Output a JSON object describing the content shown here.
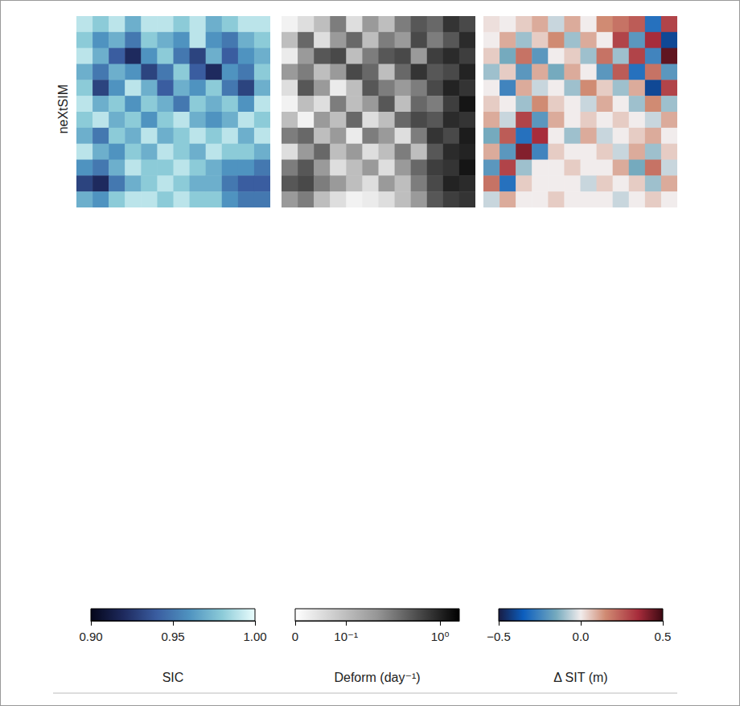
{
  "row_label": "neXtSIM",
  "chart_data": [
    {
      "type": "heatmap",
      "tick_labels": false,
      "color": "ice",
      "cells": [
        [
          0.99,
          0.98,
          0.99,
          0.97,
          0.99,
          0.99,
          0.98,
          0.99,
          0.97,
          0.98,
          0.99,
          0.99
        ],
        [
          0.98,
          0.96,
          0.97,
          0.95,
          0.98,
          0.97,
          0.96,
          0.99,
          0.96,
          0.95,
          0.97,
          0.98
        ],
        [
          0.99,
          0.97,
          0.94,
          0.92,
          0.96,
          0.98,
          0.95,
          0.93,
          0.97,
          0.94,
          0.96,
          0.97
        ],
        [
          0.97,
          0.95,
          0.97,
          0.96,
          0.93,
          0.95,
          0.98,
          0.94,
          0.92,
          0.96,
          0.95,
          0.98
        ],
        [
          0.98,
          0.93,
          0.96,
          0.99,
          0.97,
          0.94,
          0.97,
          0.96,
          0.98,
          0.95,
          0.93,
          0.97
        ],
        [
          0.99,
          0.97,
          0.98,
          0.96,
          0.98,
          0.97,
          0.95,
          0.98,
          0.97,
          0.98,
          0.96,
          0.99
        ],
        [
          0.98,
          0.99,
          0.97,
          0.98,
          0.96,
          0.98,
          0.99,
          0.97,
          0.96,
          0.97,
          0.99,
          0.98
        ],
        [
          0.97,
          0.95,
          0.98,
          0.97,
          0.99,
          0.97,
          0.98,
          0.99,
          0.98,
          0.99,
          0.97,
          0.99
        ],
        [
          0.99,
          0.97,
          0.96,
          0.98,
          0.97,
          0.99,
          0.98,
          0.97,
          0.99,
          0.98,
          0.98,
          0.97
        ],
        [
          0.96,
          0.95,
          0.97,
          0.99,
          0.98,
          0.98,
          0.99,
          0.98,
          0.97,
          0.96,
          0.96,
          0.95
        ],
        [
          0.93,
          0.92,
          0.95,
          0.97,
          0.98,
          0.99,
          0.98,
          0.97,
          0.97,
          0.95,
          0.94,
          0.94
        ],
        [
          0.97,
          0.96,
          0.98,
          0.99,
          0.99,
          0.98,
          0.99,
          0.98,
          0.98,
          0.96,
          0.95,
          0.95
        ]
      ],
      "colorbar": {
        "label": "SIC",
        "range": [
          0.9,
          1.0
        ],
        "ticks": [
          {
            "value": 0.9,
            "label": "0.90"
          },
          0.95,
          {
            "value": 1.0,
            "label": "1.00"
          }
        ]
      }
    },
    {
      "type": "heatmap",
      "tick_labels": false,
      "color": "greys",
      "log": true,
      "cells": [
        [
          0.02,
          0.05,
          0.1,
          0.3,
          0.05,
          0.2,
          0.1,
          0.3,
          0.5,
          0.4,
          0.8,
          0.6
        ],
        [
          0.1,
          0.4,
          0.05,
          0.2,
          0.4,
          0.1,
          0.3,
          0.2,
          0.6,
          0.3,
          0.5,
          0.9
        ],
        [
          0.03,
          0.2,
          0.5,
          0.6,
          0.1,
          0.3,
          0.5,
          0.6,
          0.2,
          0.7,
          0.9,
          0.7
        ],
        [
          0.2,
          0.3,
          0.1,
          0.2,
          0.6,
          0.4,
          0.1,
          0.4,
          0.8,
          0.5,
          0.6,
          1.0
        ],
        [
          0.05,
          0.5,
          0.2,
          0.03,
          0.1,
          0.5,
          0.3,
          0.2,
          0.3,
          0.6,
          1.0,
          0.8
        ],
        [
          0.02,
          0.1,
          0.05,
          0.3,
          0.1,
          0.2,
          0.5,
          0.1,
          0.4,
          0.3,
          0.7,
          1.2
        ],
        [
          0.1,
          0.02,
          0.2,
          0.1,
          0.4,
          0.05,
          0.1,
          0.4,
          0.6,
          0.5,
          0.9,
          0.8
        ],
        [
          0.3,
          0.4,
          0.1,
          0.2,
          0.03,
          0.3,
          0.2,
          0.05,
          0.3,
          0.8,
          0.6,
          1.1
        ],
        [
          0.05,
          0.2,
          0.4,
          0.1,
          0.2,
          0.05,
          0.1,
          0.3,
          0.1,
          0.5,
          0.9,
          1.0
        ],
        [
          0.3,
          0.5,
          0.2,
          0.05,
          0.1,
          0.2,
          0.05,
          0.2,
          0.4,
          0.7,
          0.8,
          1.2
        ],
        [
          0.5,
          0.6,
          0.3,
          0.2,
          0.1,
          0.05,
          0.2,
          0.1,
          0.3,
          0.6,
          1.0,
          0.9
        ],
        [
          0.2,
          0.3,
          0.1,
          0.05,
          0.02,
          0.03,
          0.05,
          0.1,
          0.2,
          0.5,
          0.7,
          0.8
        ]
      ],
      "colorbar": {
        "label": "Deform (day⁻¹)",
        "range": [
          0,
          1.6
        ],
        "ticks": [
          0,
          {
            "value": 0.1,
            "label": "10⁻¹"
          },
          {
            "value": 1,
            "label": "10⁰"
          }
        ]
      }
    },
    {
      "type": "heatmap",
      "tick_labels": false,
      "color": "balance",
      "cells": [
        [
          0.02,
          0.0,
          0.05,
          0.1,
          -0.05,
          0.1,
          0.0,
          0.15,
          0.2,
          0.25,
          -0.3,
          0.3
        ],
        [
          0.0,
          0.1,
          -0.1,
          0.05,
          0.15,
          -0.1,
          0.1,
          0.0,
          0.3,
          -0.2,
          0.35,
          -0.4
        ],
        [
          0.05,
          -0.15,
          0.2,
          -0.2,
          0.0,
          0.05,
          -0.1,
          0.2,
          -0.1,
          0.3,
          -0.25,
          0.45
        ],
        [
          -0.1,
          0.05,
          -0.2,
          0.1,
          -0.15,
          0.1,
          0.0,
          -0.2,
          0.25,
          -0.3,
          0.2,
          -0.2
        ],
        [
          0.0,
          -0.25,
          0.1,
          -0.05,
          0.0,
          -0.1,
          0.15,
          0.05,
          -0.1,
          0.1,
          -0.4,
          0.3
        ],
        [
          0.05,
          0.0,
          -0.1,
          0.15,
          0.05,
          0.0,
          -0.05,
          0.1,
          0.0,
          -0.1,
          0.15,
          -0.1
        ],
        [
          0.1,
          -0.05,
          0.3,
          -0.2,
          0.1,
          0.0,
          0.05,
          0.0,
          0.05,
          0.0,
          -0.05,
          0.1
        ],
        [
          -0.15,
          0.25,
          -0.3,
          0.35,
          0.0,
          -0.1,
          0.1,
          -0.05,
          0.0,
          0.05,
          0.1,
          0.0
        ],
        [
          0.1,
          -0.2,
          0.4,
          -0.25,
          0.05,
          0.0,
          0.0,
          0.05,
          -0.05,
          0.1,
          -0.1,
          0.05
        ],
        [
          -0.2,
          0.3,
          -0.1,
          0.0,
          0.0,
          0.05,
          0.0,
          0.0,
          0.1,
          -0.15,
          0.2,
          -0.05
        ],
        [
          0.2,
          -0.3,
          0.05,
          0.0,
          0.0,
          0.0,
          -0.05,
          0.05,
          0.0,
          0.05,
          -0.1,
          0.1
        ],
        [
          -0.05,
          0.1,
          0.0,
          0.0,
          0.05,
          0.0,
          0.0,
          0.0,
          -0.05,
          0.0,
          0.05,
          0.0
        ]
      ],
      "colorbar": {
        "label": "Δ SIT (m)",
        "range": [
          -0.5,
          0.5
        ],
        "ticks": [
          {
            "value": -0.5,
            "label": "−0.5"
          },
          {
            "value": 0,
            "label": "0.0"
          },
          0.5
        ]
      }
    }
  ]
}
